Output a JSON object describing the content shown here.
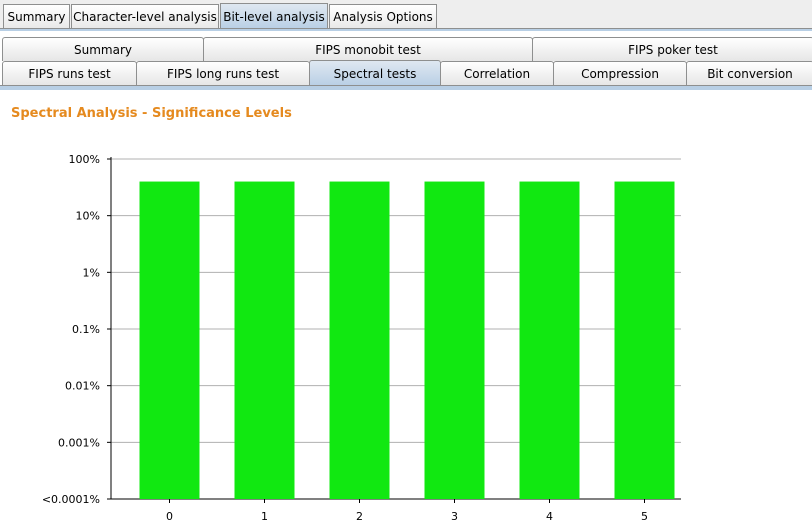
{
  "top_tabs": [
    {
      "label": "Summary",
      "active": false
    },
    {
      "label": "Character-level analysis",
      "active": false
    },
    {
      "label": "Bit-level analysis",
      "active": true
    },
    {
      "label": "Analysis Options",
      "active": false
    }
  ],
  "sub_tabs_row1": [
    {
      "label": "Summary",
      "active": false
    },
    {
      "label": "FIPS monobit test",
      "active": false
    },
    {
      "label": "FIPS poker test",
      "active": false
    }
  ],
  "sub_tabs_row2": [
    {
      "label": "FIPS runs test",
      "active": false
    },
    {
      "label": "FIPS long runs test",
      "active": false
    },
    {
      "label": "Spectral tests",
      "active": true
    },
    {
      "label": "Correlation",
      "active": false
    },
    {
      "label": "Compression",
      "active": false
    },
    {
      "label": "Bit conversion",
      "active": false
    }
  ],
  "panel": {
    "title": "Spectral Analysis - Significance Levels"
  },
  "colors": {
    "accent_title": "#e58a1f",
    "bar": "#11e811",
    "grid": "#b0b0b0"
  },
  "chart_data": {
    "type": "bar",
    "scale": "log",
    "categories": [
      "0",
      "1",
      "2",
      "3",
      "4",
      "5"
    ],
    "values": [
      40,
      40,
      40,
      40,
      40,
      40
    ],
    "y_unit": "%",
    "ylim": [
      0.0001,
      100
    ],
    "yticks": [
      "100%",
      "10%",
      "1%",
      "0.1%",
      "0.01%",
      "0.001%",
      "<0.0001%"
    ],
    "grid": true
  }
}
